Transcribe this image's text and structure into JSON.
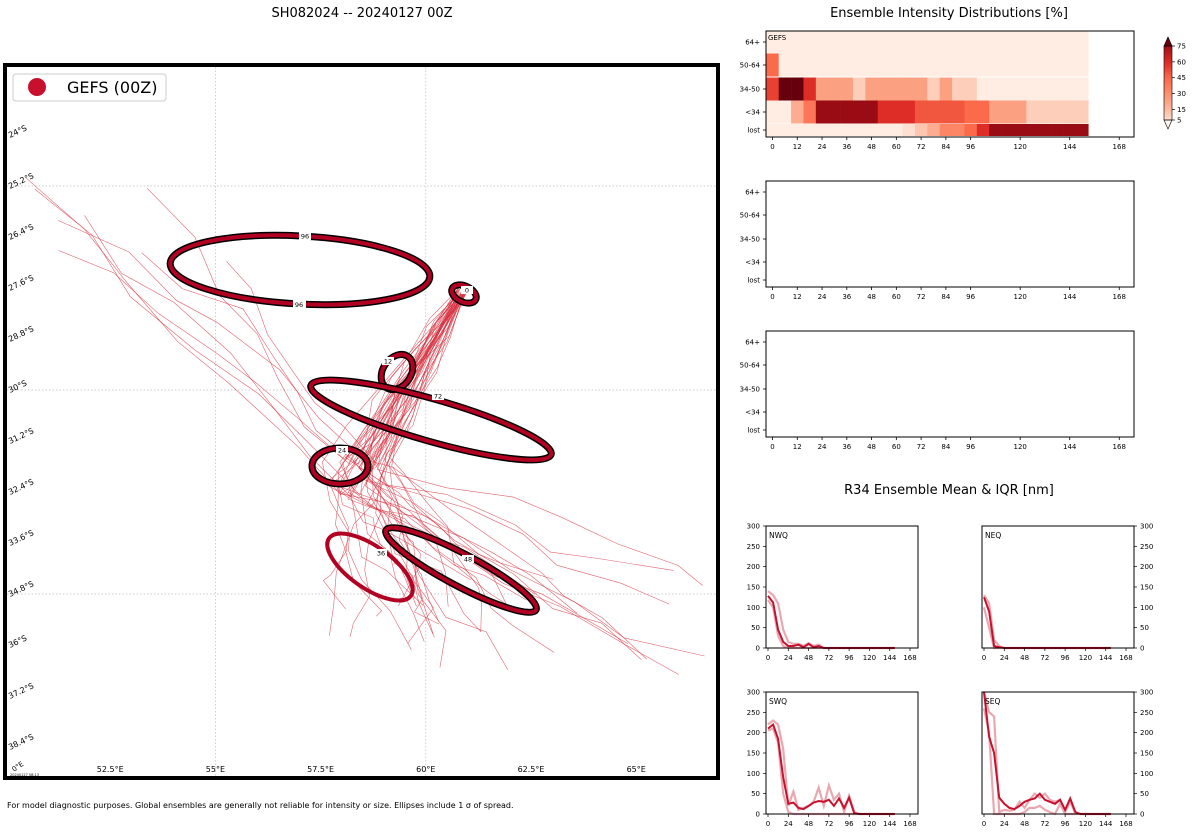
{
  "main_title": "SH082024 -- 20240127 00Z",
  "footnote": "For model diagnostic purposes. Global ensembles are generally not reliable for intensity or size. Ellipses include 1 σ of spread.",
  "map_stamp": "20240127 08:13",
  "colors": {
    "track": "#d7303f",
    "ellipse": "#b10021",
    "ellipse_edge": "#000000",
    "grid": "#bbbbbb"
  },
  "legend": {
    "label": "GEFS (00Z)"
  },
  "map": {
    "lon_ticks": [
      "52.5°E",
      "55°E",
      "57.5°E",
      "60°E",
      "62.5°E",
      "65°E"
    ],
    "lon_edge_label": "0°E",
    "lat_ticks": [
      "24°S",
      "25.2°S",
      "26.4°S",
      "27.6°S",
      "28.8°S",
      "30°S",
      "31.2°S",
      "32.4°S",
      "33.6°S",
      "34.8°S",
      "36°S",
      "37.2°S",
      "38.4°S"
    ],
    "ellipse_labels": [
      "0",
      "12",
      "24",
      "36",
      "48",
      "72",
      "96"
    ],
    "ellipse_label_96b": "96"
  },
  "chart_data": [
    {
      "type": "heatmap",
      "title": "Ensemble Intensity Distributions [%]",
      "panel_label": "GEFS",
      "x_ticks": [
        "0",
        "12",
        "24",
        "36",
        "48",
        "60",
        "72",
        "84",
        "96",
        "120",
        "144",
        "168"
      ],
      "y_categories": [
        "64+",
        "50-64",
        "34-50",
        "<34",
        "lost"
      ],
      "hours": [
        0,
        6,
        12,
        18,
        24,
        30,
        36,
        42,
        48,
        54,
        60,
        66,
        72,
        78,
        84,
        90,
        96,
        102,
        108,
        114,
        120,
        126,
        132,
        138,
        144,
        150
      ],
      "rows": {
        "64+": [
          2,
          2,
          2,
          2,
          2,
          2,
          2,
          2,
          2,
          2,
          2,
          2,
          2,
          2,
          2,
          2,
          2,
          2,
          2,
          2,
          2,
          2,
          2,
          2,
          2,
          2
        ],
        "50-64": [
          45,
          2,
          2,
          2,
          2,
          2,
          2,
          2,
          2,
          2,
          2,
          2,
          2,
          2,
          2,
          2,
          2,
          2,
          2,
          2,
          2,
          2,
          2,
          2,
          2,
          2
        ],
        "34-50": [
          55,
          90,
          90,
          60,
          25,
          25,
          25,
          10,
          25,
          25,
          25,
          25,
          25,
          10,
          25,
          10,
          10,
          2,
          2,
          2,
          2,
          2,
          2,
          2,
          2,
          2
        ],
        "<34": [
          2,
          2,
          20,
          40,
          78,
          78,
          78,
          78,
          78,
          60,
          60,
          60,
          50,
          50,
          50,
          50,
          45,
          45,
          25,
          25,
          25,
          10,
          10,
          10,
          10,
          10
        ],
        "lost": [
          2,
          2,
          2,
          2,
          2,
          2,
          2,
          2,
          2,
          2,
          2,
          5,
          12,
          20,
          35,
          35,
          45,
          60,
          78,
          78,
          78,
          78,
          78,
          78,
          78,
          78
        ]
      },
      "colorbar": {
        "ticks": [
          "5",
          "15",
          "30",
          "45",
          "60",
          "75"
        ],
        "values": [
          5,
          15,
          30,
          45,
          60,
          75
        ]
      }
    },
    {
      "type": "heatmap",
      "title": "",
      "panel_label": "",
      "x_ticks": [
        "0",
        "12",
        "24",
        "36",
        "48",
        "60",
        "72",
        "84",
        "96",
        "120",
        "144",
        "168"
      ],
      "y_categories": [
        "64+",
        "50-64",
        "34-50",
        "<34",
        "lost"
      ]
    },
    {
      "type": "heatmap",
      "title": "",
      "panel_label": "",
      "x_ticks": [
        "0",
        "12",
        "24",
        "36",
        "48",
        "60",
        "72",
        "84",
        "96",
        "120",
        "144",
        "168"
      ],
      "y_categories": [
        "64+",
        "50-64",
        "34-50",
        "<34",
        "lost"
      ]
    },
    {
      "type": "line",
      "title": "R34 Ensemble Mean & IQR [nm]",
      "x_ticks": [
        "0",
        "24",
        "48",
        "72",
        "96",
        "120",
        "144",
        "168"
      ],
      "y_ticks": [
        "0",
        "50",
        "100",
        "150",
        "200",
        "250",
        "300"
      ],
      "xlim": [
        0,
        168
      ],
      "ylim": [
        0,
        300
      ],
      "x": [
        0,
        6,
        12,
        18,
        24,
        30,
        36,
        42,
        48,
        54,
        60,
        66,
        72,
        78,
        84,
        90,
        96,
        102,
        108,
        114,
        120,
        126,
        132,
        138,
        144,
        150
      ],
      "quadrants": [
        {
          "name": "NWQ",
          "mean": [
            128,
            112,
            45,
            15,
            5,
            5,
            8,
            2,
            10,
            2,
            5,
            0,
            0,
            0,
            0,
            0,
            0,
            0,
            0,
            0,
            0,
            0,
            0,
            0,
            0,
            0
          ],
          "q25": [
            118,
            100,
            30,
            5,
            0,
            0,
            0,
            0,
            0,
            0,
            0,
            0,
            0,
            0,
            0,
            0,
            0,
            0,
            0,
            0,
            0,
            0,
            0,
            0,
            0,
            0
          ],
          "q75": [
            140,
            130,
            110,
            45,
            15,
            10,
            10,
            5,
            12,
            5,
            8,
            0,
            0,
            0,
            0,
            0,
            0,
            0,
            0,
            0,
            0,
            0,
            0,
            0,
            0,
            0
          ]
        },
        {
          "name": "NEQ",
          "mean": [
            125,
            90,
            5,
            2,
            0,
            0,
            0,
            0,
            0,
            0,
            0,
            0,
            0,
            0,
            0,
            0,
            0,
            0,
            0,
            0,
            0,
            0,
            0,
            0,
            0,
            0
          ],
          "q25": [
            100,
            50,
            0,
            0,
            0,
            0,
            0,
            0,
            0,
            0,
            0,
            0,
            0,
            0,
            0,
            0,
            0,
            0,
            0,
            0,
            0,
            0,
            0,
            0,
            0,
            0
          ],
          "q75": [
            130,
            110,
            20,
            5,
            0,
            0,
            0,
            0,
            0,
            0,
            0,
            0,
            0,
            0,
            0,
            0,
            0,
            0,
            0,
            0,
            0,
            0,
            0,
            0,
            0,
            0
          ]
        },
        {
          "name": "SWQ",
          "mean": [
            210,
            220,
            185,
            90,
            25,
            28,
            15,
            12,
            20,
            28,
            32,
            30,
            35,
            20,
            38,
            15,
            40,
            2,
            0,
            0,
            0,
            0,
            0,
            0,
            0,
            0
          ],
          "q25": [
            205,
            210,
            175,
            50,
            5,
            0,
            0,
            0,
            0,
            0,
            0,
            0,
            0,
            0,
            0,
            0,
            0,
            0,
            0,
            0,
            0,
            0,
            0,
            0,
            0,
            0
          ],
          "q75": [
            220,
            230,
            220,
            160,
            20,
            55,
            10,
            15,
            20,
            30,
            65,
            20,
            70,
            35,
            50,
            5,
            45,
            5,
            0,
            0,
            0,
            0,
            0,
            0,
            0,
            0
          ]
        },
        {
          "name": "SEQ",
          "mean": [
            300,
            190,
            150,
            40,
            25,
            15,
            12,
            20,
            30,
            35,
            38,
            50,
            35,
            30,
            25,
            35,
            10,
            38,
            5,
            0,
            0,
            0,
            0,
            0,
            0,
            0
          ],
          "q25": [
            260,
            200,
            0,
            0,
            0,
            0,
            0,
            0,
            5,
            15,
            15,
            20,
            10,
            5,
            0,
            25,
            0,
            0,
            0,
            0,
            0,
            0,
            0,
            0,
            0,
            0
          ],
          "q75": [
            300,
            250,
            240,
            5,
            10,
            8,
            10,
            30,
            15,
            35,
            50,
            40,
            50,
            35,
            30,
            35,
            5,
            30,
            2,
            0,
            0,
            0,
            0,
            0,
            0,
            0
          ]
        }
      ]
    }
  ]
}
